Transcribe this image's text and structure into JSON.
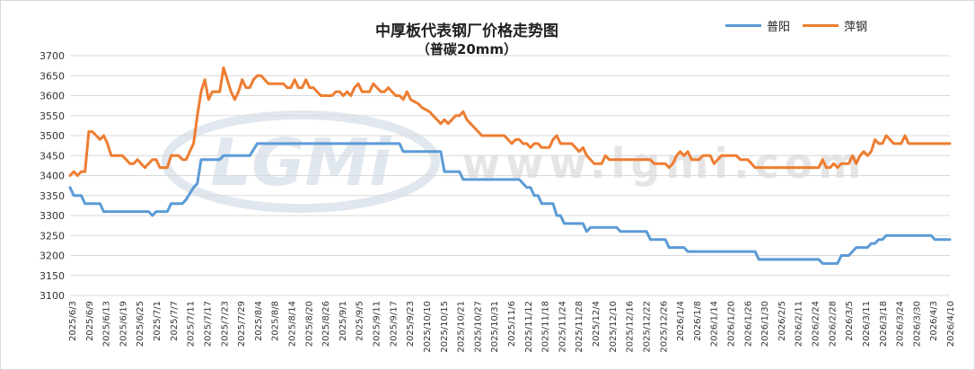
{
  "chart_data": {
    "type": "line",
    "title": "中厚板代表钢厂价格走势图",
    "subtitle": "（普碳20mm）",
    "ylim": [
      3100,
      3700
    ],
    "ytick_step": 50,
    "grid": "horizontal",
    "legend_position": "top-right",
    "x_tick_labels": [
      "2025/6/3",
      "2025/6/9",
      "2025/6/13",
      "2025/6/19",
      "2025/6/25",
      "2025/7/1",
      "2025/7/7",
      "2025/7/11",
      "2025/7/17",
      "2025/7/23",
      "2025/7/29",
      "2025/8/4",
      "2025/8/8",
      "2025/8/14",
      "2025/8/20",
      "2025/8/26",
      "2025/9/1",
      "2025/9/5",
      "2025/9/11",
      "2025/9/17",
      "2025/9/23",
      "2025/10/10",
      "2025/10/15",
      "2025/10/21",
      "2025/10/27",
      "2025/10/31",
      "2025/11/6",
      "2025/11/12",
      "2025/11/18",
      "2025/11/24",
      "2025/11/28",
      "2025/12/4",
      "2025/12/10",
      "2025/12/16",
      "2025/12/22",
      "2025/12/26",
      "2026/1/4",
      "2026/1/8",
      "2026/1/14",
      "2026/1/20",
      "2026/1/26",
      "2026/1/30",
      "2026/2/5",
      "2026/2/11",
      "2026/2/24",
      "2026/2/28",
      "2026/3/5",
      "2026/3/11",
      "2026/3/18",
      "2026/3/24",
      "2026/3/30",
      "2026/4/3",
      "2026/4/10"
    ],
    "series": [
      {
        "name": "普阳",
        "color": "#5b9bd5",
        "points": [
          [
            0,
            3370
          ],
          [
            1,
            3350
          ],
          [
            3,
            3350
          ],
          [
            4,
            3330
          ],
          [
            8,
            3330
          ],
          [
            9,
            3310
          ],
          [
            21,
            3310
          ],
          [
            22,
            3300
          ],
          [
            23,
            3310
          ],
          [
            26,
            3310
          ],
          [
            27,
            3330
          ],
          [
            30,
            3330
          ],
          [
            31,
            3340
          ],
          [
            33,
            3370
          ],
          [
            34,
            3380
          ],
          [
            35,
            3440
          ],
          [
            40,
            3440
          ],
          [
            41,
            3450
          ],
          [
            48,
            3450
          ],
          [
            50,
            3480
          ],
          [
            88,
            3480
          ],
          [
            89,
            3460
          ],
          [
            99,
            3460
          ],
          [
            100,
            3410
          ],
          [
            104,
            3410
          ],
          [
            105,
            3390
          ],
          [
            120,
            3390
          ],
          [
            121,
            3380
          ],
          [
            122,
            3370
          ],
          [
            123,
            3370
          ],
          [
            124,
            3350
          ],
          [
            125,
            3350
          ],
          [
            126,
            3330
          ],
          [
            129,
            3330
          ],
          [
            130,
            3300
          ],
          [
            131,
            3300
          ],
          [
            132,
            3280
          ],
          [
            137,
            3280
          ],
          [
            138,
            3260
          ],
          [
            139,
            3270
          ],
          [
            146,
            3270
          ],
          [
            147,
            3260
          ],
          [
            154,
            3260
          ],
          [
            155,
            3240
          ],
          [
            159,
            3240
          ],
          [
            160,
            3220
          ],
          [
            164,
            3220
          ],
          [
            165,
            3210
          ],
          [
            183,
            3210
          ],
          [
            184,
            3190
          ],
          [
            200,
            3190
          ],
          [
            201,
            3180
          ],
          [
            205,
            3180
          ],
          [
            206,
            3200
          ],
          [
            208,
            3200
          ],
          [
            210,
            3220
          ],
          [
            213,
            3220
          ],
          [
            214,
            3230
          ],
          [
            215,
            3230
          ],
          [
            216,
            3240
          ],
          [
            217,
            3240
          ],
          [
            218,
            3250
          ],
          [
            230,
            3250
          ],
          [
            231,
            3240
          ],
          [
            235,
            3240
          ]
        ]
      },
      {
        "name": "萍钢",
        "color": "#ed7d31",
        "points": [
          [
            0,
            3400
          ],
          [
            1,
            3410
          ],
          [
            2,
            3400
          ],
          [
            3,
            3410
          ],
          [
            4,
            3410
          ],
          [
            5,
            3510
          ],
          [
            6,
            3510
          ],
          [
            7,
            3500
          ],
          [
            8,
            3490
          ],
          [
            9,
            3500
          ],
          [
            10,
            3480
          ],
          [
            11,
            3450
          ],
          [
            14,
            3450
          ],
          [
            15,
            3440
          ],
          [
            16,
            3430
          ],
          [
            17,
            3430
          ],
          [
            18,
            3440
          ],
          [
            19,
            3430
          ],
          [
            20,
            3420
          ],
          [
            21,
            3430
          ],
          [
            22,
            3440
          ],
          [
            23,
            3440
          ],
          [
            24,
            3420
          ],
          [
            26,
            3420
          ],
          [
            27,
            3450
          ],
          [
            29,
            3450
          ],
          [
            30,
            3440
          ],
          [
            31,
            3440
          ],
          [
            32,
            3460
          ],
          [
            33,
            3480
          ],
          [
            34,
            3550
          ],
          [
            35,
            3610
          ],
          [
            36,
            3640
          ],
          [
            37,
            3590
          ],
          [
            38,
            3610
          ],
          [
            40,
            3610
          ],
          [
            41,
            3670
          ],
          [
            42,
            3640
          ],
          [
            43,
            3610
          ],
          [
            44,
            3590
          ],
          [
            45,
            3610
          ],
          [
            46,
            3640
          ],
          [
            47,
            3620
          ],
          [
            48,
            3620
          ],
          [
            49,
            3640
          ],
          [
            50,
            3650
          ],
          [
            51,
            3650
          ],
          [
            52,
            3640
          ],
          [
            53,
            3630
          ],
          [
            57,
            3630
          ],
          [
            58,
            3620
          ],
          [
            59,
            3620
          ],
          [
            60,
            3640
          ],
          [
            61,
            3620
          ],
          [
            62,
            3620
          ],
          [
            63,
            3640
          ],
          [
            64,
            3620
          ],
          [
            65,
            3620
          ],
          [
            66,
            3610
          ],
          [
            67,
            3600
          ],
          [
            70,
            3600
          ],
          [
            71,
            3610
          ],
          [
            72,
            3610
          ],
          [
            73,
            3600
          ],
          [
            74,
            3610
          ],
          [
            75,
            3600
          ],
          [
            76,
            3620
          ],
          [
            77,
            3630
          ],
          [
            78,
            3610
          ],
          [
            80,
            3610
          ],
          [
            81,
            3630
          ],
          [
            82,
            3620
          ],
          [
            83,
            3610
          ],
          [
            84,
            3610
          ],
          [
            85,
            3620
          ],
          [
            86,
            3610
          ],
          [
            87,
            3600
          ],
          [
            88,
            3600
          ],
          [
            89,
            3590
          ],
          [
            90,
            3610
          ],
          [
            91,
            3590
          ],
          [
            93,
            3580
          ],
          [
            94,
            3570
          ],
          [
            96,
            3560
          ],
          [
            97,
            3550
          ],
          [
            98,
            3540
          ],
          [
            99,
            3530
          ],
          [
            100,
            3540
          ],
          [
            101,
            3530
          ],
          [
            102,
            3540
          ],
          [
            103,
            3550
          ],
          [
            104,
            3550
          ],
          [
            105,
            3560
          ],
          [
            106,
            3540
          ],
          [
            107,
            3530
          ],
          [
            108,
            3520
          ],
          [
            109,
            3510
          ],
          [
            110,
            3500
          ],
          [
            116,
            3500
          ],
          [
            117,
            3490
          ],
          [
            118,
            3480
          ],
          [
            119,
            3490
          ],
          [
            120,
            3490
          ],
          [
            121,
            3480
          ],
          [
            122,
            3480
          ],
          [
            123,
            3470
          ],
          [
            124,
            3480
          ],
          [
            125,
            3480
          ],
          [
            126,
            3470
          ],
          [
            128,
            3470
          ],
          [
            129,
            3490
          ],
          [
            130,
            3500
          ],
          [
            131,
            3480
          ],
          [
            134,
            3480
          ],
          [
            135,
            3470
          ],
          [
            136,
            3460
          ],
          [
            137,
            3470
          ],
          [
            138,
            3450
          ],
          [
            139,
            3440
          ],
          [
            140,
            3430
          ],
          [
            142,
            3430
          ],
          [
            143,
            3450
          ],
          [
            144,
            3440
          ],
          [
            155,
            3440
          ],
          [
            156,
            3430
          ],
          [
            159,
            3430
          ],
          [
            160,
            3420
          ],
          [
            161,
            3430
          ],
          [
            162,
            3450
          ],
          [
            163,
            3460
          ],
          [
            164,
            3450
          ],
          [
            165,
            3460
          ],
          [
            166,
            3440
          ],
          [
            168,
            3440
          ],
          [
            169,
            3450
          ],
          [
            171,
            3450
          ],
          [
            172,
            3430
          ],
          [
            173,
            3440
          ],
          [
            174,
            3450
          ],
          [
            178,
            3450
          ],
          [
            179,
            3440
          ],
          [
            181,
            3440
          ],
          [
            182,
            3430
          ],
          [
            183,
            3420
          ],
          [
            200,
            3420
          ],
          [
            201,
            3440
          ],
          [
            202,
            3420
          ],
          [
            203,
            3420
          ],
          [
            204,
            3430
          ],
          [
            205,
            3420
          ],
          [
            206,
            3430
          ],
          [
            208,
            3430
          ],
          [
            209,
            3450
          ],
          [
            210,
            3430
          ],
          [
            211,
            3450
          ],
          [
            212,
            3460
          ],
          [
            213,
            3450
          ],
          [
            214,
            3460
          ],
          [
            215,
            3490
          ],
          [
            216,
            3480
          ],
          [
            217,
            3480
          ],
          [
            218,
            3500
          ],
          [
            219,
            3490
          ],
          [
            220,
            3480
          ],
          [
            222,
            3480
          ],
          [
            223,
            3500
          ],
          [
            224,
            3480
          ],
          [
            235,
            3480
          ]
        ]
      }
    ]
  },
  "watermark": {
    "logo_text": "LGMi",
    "url_text": "www.lgmi.com"
  }
}
